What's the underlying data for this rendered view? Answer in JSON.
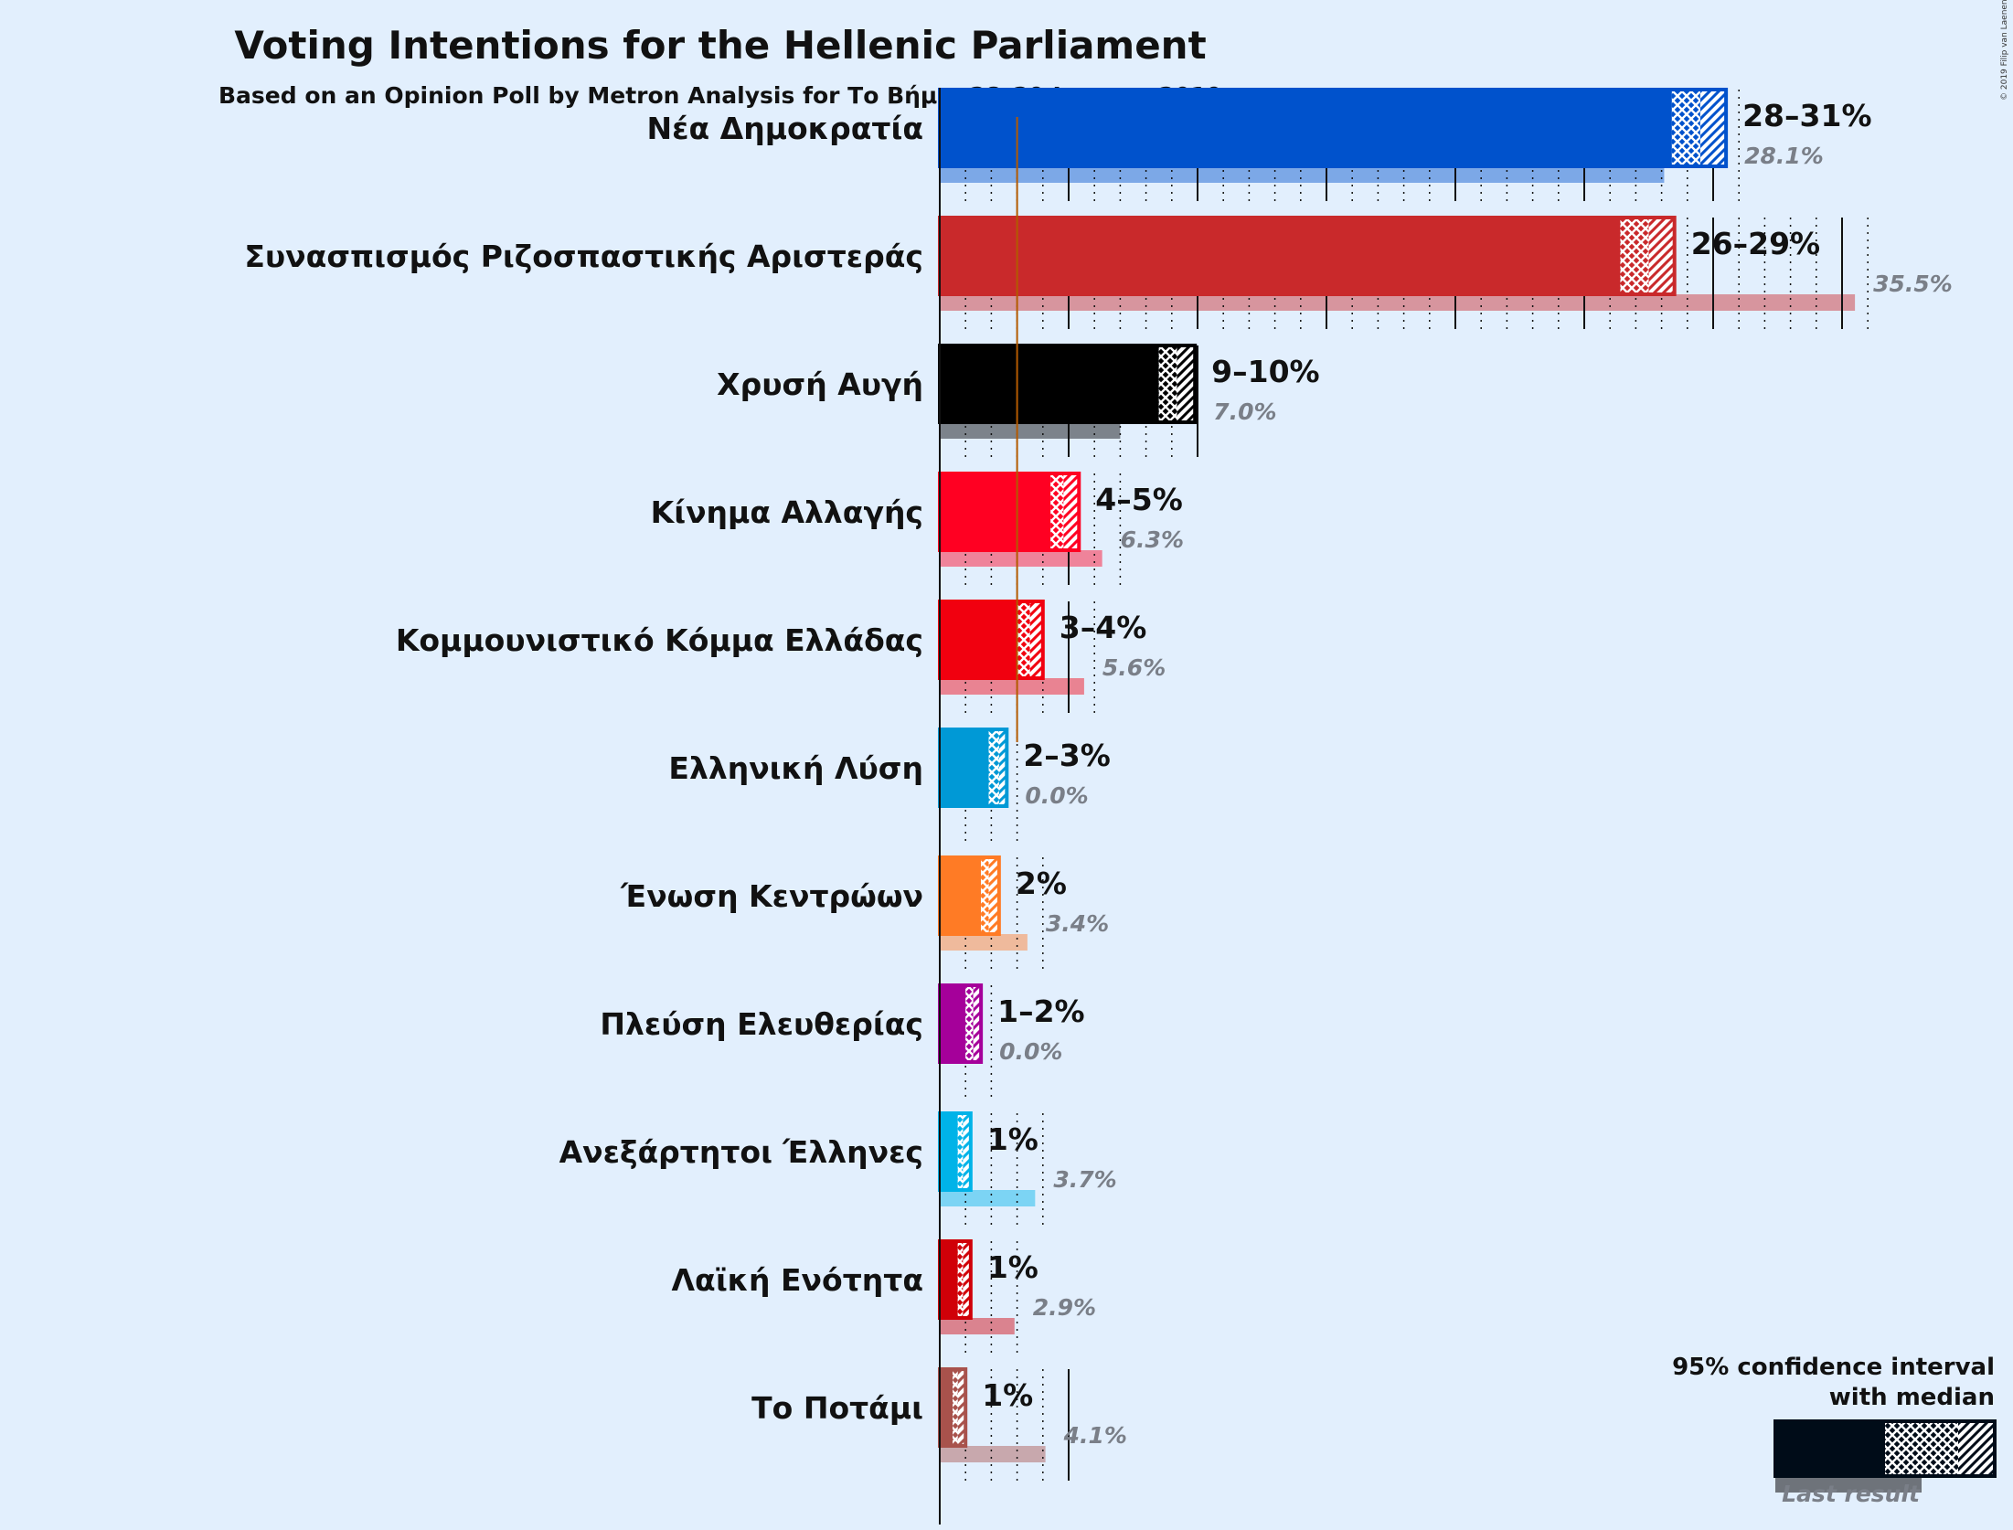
{
  "chart_data": {
    "type": "bar",
    "title": "Voting Intentions for the Hellenic Parliament",
    "subtitle": "Based on an Opinion Poll by Metron Analysis for Το Βήμα, 28–29 January 2019",
    "copyright": "© 2019 Filip van Laenen",
    "legend": {
      "title_line1": "95% confidence interval",
      "title_line2": "with median",
      "last_result_label": "Last result",
      "placement": "bottom-right"
    },
    "threshold_percent": 3,
    "xlim": [
      0,
      36
    ],
    "parties": [
      {
        "name": "Νέα Δημοκρατία",
        "color": "#0052cc",
        "low": 28.4,
        "median": 29.5,
        "high": 30.5,
        "label": "28–31%",
        "last": 28.1,
        "last_label": "28.1%"
      },
      {
        "name": "Συνασπισμός Ριζοσπαστικής Αριστεράς",
        "color": "#c9292b",
        "low": 26.4,
        "median": 27.5,
        "high": 28.5,
        "label": "26–29%",
        "last": 35.5,
        "last_label": "35.5%"
      },
      {
        "name": "Χρυσή Αυγή",
        "color": "#000000",
        "low": 8.5,
        "median": 9.2,
        "high": 9.9,
        "label": "9–10%",
        "last": 7.0,
        "last_label": "7.0%"
      },
      {
        "name": "Κίνημα Αλλαγής",
        "color": "#ff0022",
        "low": 4.3,
        "median": 4.8,
        "high": 5.4,
        "label": "4–5%",
        "last": 6.3,
        "last_label": "6.3%"
      },
      {
        "name": "Κομμουνιστικό Κόμμα Ελλάδας",
        "color": "#f1000f",
        "low": 3.0,
        "median": 3.5,
        "high": 4.0,
        "label": "3–4%",
        "last": 5.6,
        "last_label": "5.6%"
      },
      {
        "name": "Ελληνική Λύση",
        "color": "#0099d6",
        "low": 1.9,
        "median": 2.3,
        "high": 2.6,
        "label": "2–3%",
        "last": 0.0,
        "last_label": "0.0%"
      },
      {
        "name": "Ένωση Κεντρώων",
        "color": "#ff7b25",
        "low": 1.6,
        "median": 1.9,
        "high": 2.3,
        "label": "2%",
        "last": 3.4,
        "last_label": "3.4%"
      },
      {
        "name": "Πλεύση Ελευθερίας",
        "color": "#a5009a",
        "low": 1.0,
        "median": 1.3,
        "high": 1.6,
        "label": "1–2%",
        "last": 0.0,
        "last_label": "0.0%"
      },
      {
        "name": "Ανεξάρτητοι Έλληνες",
        "color": "#00b3e8",
        "low": 0.7,
        "median": 0.9,
        "high": 1.2,
        "label": "1%",
        "last": 3.7,
        "last_label": "3.7%"
      },
      {
        "name": "Λαϊκή Ενότητα",
        "color": "#d00008",
        "low": 0.7,
        "median": 0.9,
        "high": 1.2,
        "label": "1%",
        "last": 2.9,
        "last_label": "2.9%"
      },
      {
        "name": "Το Ποτάμι",
        "color": "#a8524c",
        "low": 0.5,
        "median": 0.7,
        "high": 1.0,
        "label": "1%",
        "last": 4.1,
        "last_label": "4.1%"
      }
    ]
  }
}
